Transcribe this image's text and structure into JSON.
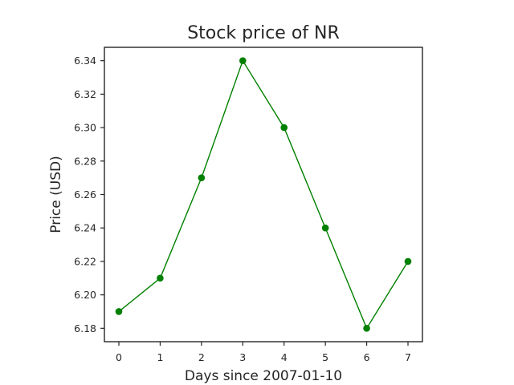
{
  "chart_data": {
    "type": "line",
    "title": "Stock price of NR",
    "xlabel": "Days since 2007-01-10",
    "ylabel": "Price (USD)",
    "x": [
      0,
      1,
      2,
      3,
      4,
      5,
      6,
      7
    ],
    "series": [
      {
        "values": [
          6.19,
          6.21,
          6.27,
          6.34,
          6.3,
          6.24,
          6.18,
          6.22
        ],
        "color": "#008000",
        "marker": "circle"
      }
    ],
    "xticks": [
      "0",
      "1",
      "2",
      "3",
      "4",
      "5",
      "6",
      "7"
    ],
    "yticks": [
      "6.18",
      "6.20",
      "6.22",
      "6.24",
      "6.26",
      "6.28",
      "6.30",
      "6.32",
      "6.34"
    ],
    "xlim": [
      -0.35,
      7.35
    ],
    "ylim": [
      6.172,
      6.348
    ],
    "grid": false,
    "legend": "none"
  }
}
